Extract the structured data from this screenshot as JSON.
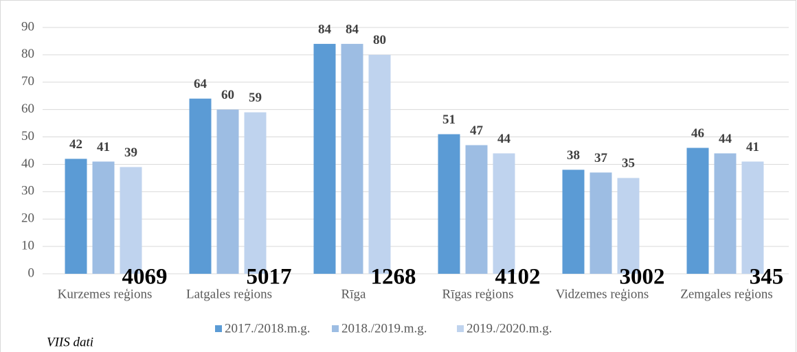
{
  "chart_data": {
    "type": "bar",
    "categories": [
      "Kurzemes reģions",
      "Latgales reģions",
      "Rīga",
      "Rīgas reģions",
      "Vidzemes reģions",
      "Zemgales reģions"
    ],
    "series": [
      {
        "name": "2017./2018.m.g.",
        "color": "#5b9bd5",
        "values": [
          42,
          64,
          84,
          51,
          38,
          46
        ]
      },
      {
        "name": "2018./2019.m.g.",
        "color": "#9dbde3",
        "values": [
          41,
          60,
          84,
          47,
          37,
          44
        ]
      },
      {
        "name": "2019./2020.m.g.",
        "color": "#bfd3ee",
        "values": [
          39,
          59,
          80,
          44,
          35,
          41
        ]
      }
    ],
    "annotations": [
      4069,
      5017,
      1268,
      4102,
      3002,
      345
    ],
    "ylim": [
      0,
      90
    ],
    "yticks": [
      0,
      10,
      20,
      30,
      40,
      50,
      60,
      70,
      80,
      90
    ],
    "grid": true,
    "legend": "bottom",
    "source": "VIIS dati"
  }
}
